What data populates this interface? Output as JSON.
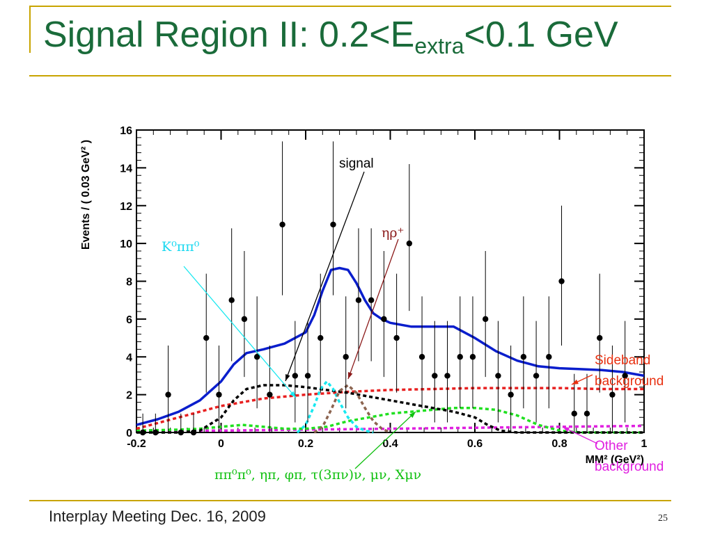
{
  "slide": {
    "title_main": "Signal Region II: 0.2<E",
    "title_sub": "extra",
    "title_end": "<0.1 GeV",
    "footer": "Interplay Meeting Dec. 16, 2009",
    "page_number": "25"
  },
  "colors": {
    "title": "#1a6b3a",
    "accent_rule": "#c8a400",
    "total_fit": "#0a1ecc",
    "sideband": "#e82020",
    "other": "#e020e0",
    "K0pipi0": "#18e8f0",
    "etarho": "#8c6450",
    "signal_black": "#000000",
    "green": "#20e020"
  },
  "chart_data": {
    "type": "scatter",
    "xlabel": "MM² (GeV²)",
    "ylabel": "Events / ( 0.03 GeV² )",
    "xlim": [
      -0.2,
      1.0
    ],
    "ylim": [
      0,
      16
    ],
    "x_ticks": [
      "-0.2",
      "0",
      "0.2",
      "0.4",
      "0.6",
      "0.8",
      "1"
    ],
    "y_ticks": [
      "0",
      "2",
      "4",
      "6",
      "8",
      "10",
      "12",
      "14",
      "16"
    ],
    "data_points": [
      {
        "x": -0.185,
        "y": 0,
        "err": 1.0
      },
      {
        "x": -0.155,
        "y": 0,
        "err": 1.0
      },
      {
        "x": -0.125,
        "y": 2,
        "err": 2.6
      },
      {
        "x": -0.095,
        "y": 0,
        "err": 1.0
      },
      {
        "x": -0.065,
        "y": 0,
        "err": 1.0
      },
      {
        "x": -0.035,
        "y": 5,
        "err": 3.4
      },
      {
        "x": -0.005,
        "y": 2,
        "err": 2.6
      },
      {
        "x": 0.025,
        "y": 7,
        "err": 3.8
      },
      {
        "x": 0.055,
        "y": 6,
        "err": 3.6
      },
      {
        "x": 0.085,
        "y": 4,
        "err": 3.2
      },
      {
        "x": 0.115,
        "y": 2,
        "err": 2.6
      },
      {
        "x": 0.145,
        "y": 11,
        "err": 4.4
      },
      {
        "x": 0.175,
        "y": 3,
        "err": 2.9
      },
      {
        "x": 0.205,
        "y": 3,
        "err": 2.9
      },
      {
        "x": 0.235,
        "y": 5,
        "err": 3.4
      },
      {
        "x": 0.265,
        "y": 11,
        "err": 4.4
      },
      {
        "x": 0.295,
        "y": 4,
        "err": 3.2
      },
      {
        "x": 0.325,
        "y": 7,
        "err": 3.8
      },
      {
        "x": 0.355,
        "y": 7,
        "err": 3.8
      },
      {
        "x": 0.385,
        "y": 6,
        "err": 3.6
      },
      {
        "x": 0.415,
        "y": 5,
        "err": 3.4
      },
      {
        "x": 0.445,
        "y": 10,
        "err": 4.2
      },
      {
        "x": 0.475,
        "y": 4,
        "err": 3.2
      },
      {
        "x": 0.505,
        "y": 3,
        "err": 2.9
      },
      {
        "x": 0.535,
        "y": 3,
        "err": 2.9
      },
      {
        "x": 0.565,
        "y": 4,
        "err": 3.2
      },
      {
        "x": 0.595,
        "y": 4,
        "err": 3.2
      },
      {
        "x": 0.625,
        "y": 6,
        "err": 3.6
      },
      {
        "x": 0.655,
        "y": 3,
        "err": 2.9
      },
      {
        "x": 0.685,
        "y": 2,
        "err": 2.6
      },
      {
        "x": 0.715,
        "y": 4,
        "err": 3.2
      },
      {
        "x": 0.745,
        "y": 3,
        "err": 2.9
      },
      {
        "x": 0.775,
        "y": 4,
        "err": 3.2
      },
      {
        "x": 0.805,
        "y": 8,
        "err": 4.0
      },
      {
        "x": 0.835,
        "y": 1,
        "err": 2.1
      },
      {
        "x": 0.865,
        "y": 1,
        "err": 2.1
      },
      {
        "x": 0.895,
        "y": 5,
        "err": 3.4
      },
      {
        "x": 0.925,
        "y": 2,
        "err": 2.6
      },
      {
        "x": 0.955,
        "y": 3,
        "err": 2.9
      }
    ],
    "curves": [
      {
        "key": "total",
        "style": "solid",
        "color": "#0a1ecc",
        "x": [
          -0.2,
          -0.15,
          -0.1,
          -0.05,
          0.0,
          0.03,
          0.06,
          0.1,
          0.15,
          0.2,
          0.22,
          0.24,
          0.26,
          0.28,
          0.3,
          0.32,
          0.34,
          0.36,
          0.38,
          0.4,
          0.45,
          0.5,
          0.55,
          0.6,
          0.65,
          0.7,
          0.75,
          0.8,
          0.85,
          0.9,
          0.95,
          1.0
        ],
        "y": [
          0.4,
          0.7,
          1.1,
          1.7,
          2.7,
          3.6,
          4.2,
          4.4,
          4.7,
          5.3,
          6.2,
          7.5,
          8.6,
          8.7,
          8.6,
          7.9,
          7.0,
          6.3,
          6.0,
          5.8,
          5.6,
          5.6,
          5.6,
          5.0,
          4.3,
          3.8,
          3.5,
          3.4,
          3.35,
          3.3,
          3.2,
          3.0
        ]
      },
      {
        "key": "sideband",
        "style": "dashed",
        "color": "#e82020",
        "x": [
          -0.2,
          -0.1,
          0.0,
          0.1,
          0.2,
          0.3,
          0.4,
          0.5,
          0.6,
          0.7,
          0.8,
          0.9,
          1.0
        ],
        "y": [
          0.2,
          0.8,
          1.4,
          1.8,
          2.0,
          2.15,
          2.25,
          2.3,
          2.35,
          2.35,
          2.35,
          2.3,
          2.3
        ]
      },
      {
        "key": "signal_black",
        "style": "dashed",
        "color": "#000000",
        "x": [
          -0.2,
          -0.1,
          -0.05,
          0.0,
          0.03,
          0.06,
          0.1,
          0.15,
          0.2,
          0.3,
          0.4,
          0.5,
          0.55,
          0.6,
          0.63,
          0.66,
          0.7,
          0.8,
          0.9,
          1.0
        ],
        "y": [
          0,
          0,
          0.1,
          0.8,
          1.7,
          2.3,
          2.5,
          2.5,
          2.4,
          2.1,
          1.7,
          1.3,
          1.1,
          0.8,
          0.4,
          0.1,
          0,
          0,
          0,
          0
        ]
      },
      {
        "key": "K0pipi0",
        "style": "dashed",
        "color": "#18e8f0",
        "x": [
          0.18,
          0.2,
          0.22,
          0.235,
          0.25,
          0.265,
          0.28,
          0.3,
          0.32,
          0.34,
          0.36
        ],
        "y": [
          0,
          0.4,
          1.4,
          2.3,
          2.7,
          2.3,
          1.6,
          0.8,
          0.3,
          0.1,
          0
        ]
      },
      {
        "key": "etarho",
        "style": "dashed",
        "color": "#8c6450",
        "x": [
          0.22,
          0.24,
          0.26,
          0.28,
          0.3,
          0.32,
          0.34,
          0.36,
          0.38,
          0.4
        ],
        "y": [
          0,
          0.3,
          1.2,
          2.2,
          2.5,
          2.1,
          1.3,
          0.6,
          0.2,
          0
        ]
      },
      {
        "key": "green",
        "style": "dashed",
        "color": "#20e020",
        "x": [
          -0.2,
          -0.1,
          -0.05,
          0.0,
          0.05,
          0.1,
          0.15,
          0.2,
          0.25,
          0.3,
          0.35,
          0.4,
          0.45,
          0.5,
          0.55,
          0.6,
          0.65,
          0.7,
          0.75,
          0.8,
          0.85,
          0.9,
          1.0
        ],
        "y": [
          0.1,
          0.15,
          0.2,
          0.3,
          0.4,
          0.3,
          0.2,
          0.2,
          0.3,
          0.6,
          0.8,
          1.0,
          1.1,
          1.2,
          1.3,
          1.3,
          1.2,
          0.9,
          0.4,
          0.1,
          0,
          0,
          0
        ]
      },
      {
        "key": "other",
        "style": "dashed",
        "color": "#e020e0",
        "x": [
          -0.2,
          0.0,
          0.2,
          0.4,
          0.6,
          0.8,
          1.0
        ],
        "y": [
          0.1,
          0.1,
          0.15,
          0.2,
          0.25,
          0.3,
          0.35
        ]
      }
    ],
    "annotations": [
      {
        "key": "signal",
        "text": "signal",
        "color": "#000000"
      },
      {
        "key": "etarho",
        "text": "ηρ⁺",
        "color": "#8b1a1a"
      },
      {
        "key": "K0pipi0",
        "text": "K⁰ππ⁰",
        "color": "#18d8f0"
      },
      {
        "key": "sideband",
        "text_line1": "Sideband",
        "text_line2": "background",
        "color": "#e83010"
      },
      {
        "key": "other",
        "text_line1": "Other",
        "text_line2": "background",
        "color": "#e020e0"
      },
      {
        "key": "green",
        "text": "ππ⁰π⁰, ηπ, φπ, τ(3πν)ν, μν, Χμν",
        "color": "#10c010"
      }
    ]
  }
}
